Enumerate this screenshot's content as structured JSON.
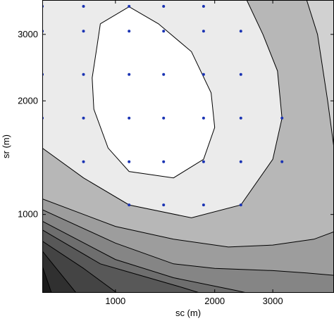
{
  "chart_data": {
    "type": "contour",
    "title": "",
    "xlabel": "sc (m)",
    "ylabel": "sr (m)",
    "x_scale": "log",
    "y_scale": "log",
    "xlim": [
      600,
      4600
    ],
    "ylim": [
      620,
      3700
    ],
    "x_ticks": [
      {
        "value": 1000,
        "label": "1000"
      },
      {
        "value": 2000,
        "label": "2000"
      },
      {
        "value": 3000,
        "label": "3000"
      }
    ],
    "y_ticks": [
      {
        "value": 1000,
        "label": "1000"
      },
      {
        "value": 2000,
        "label": "2000"
      },
      {
        "value": 3000,
        "label": "3000"
      }
    ],
    "grid": false,
    "legend": "none",
    "colors": {
      "marker": "#1a33b3",
      "contour_line": "#000000",
      "fills": [
        "#1a1a1a",
        "#303030",
        "#444444",
        "#585858",
        "#6e6e6e",
        "#858585",
        "#9d9d9d",
        "#b7b7b7",
        "#d1d1d1",
        "#ebebeb",
        "#ffffff"
      ]
    },
    "contours": [
      {
        "level": 1,
        "points": [
          [
            600,
            730
          ],
          [
            640,
            620
          ]
        ]
      },
      {
        "level": 2,
        "points": [
          [
            600,
            800
          ],
          [
            760,
            620
          ]
        ]
      },
      {
        "level": 3,
        "points": [
          [
            600,
            850
          ],
          [
            800,
            720
          ],
          [
            1010,
            620
          ]
        ]
      },
      {
        "level": 4,
        "points": [
          [
            600,
            910
          ],
          [
            900,
            740
          ],
          [
            1600,
            640
          ],
          [
            1800,
            620
          ]
        ]
      },
      {
        "level": 5,
        "points": [
          [
            600,
            960
          ],
          [
            1000,
            760
          ],
          [
            1500,
            680
          ],
          [
            2300,
            630
          ],
          [
            2500,
            620
          ]
        ]
      },
      {
        "level": 6,
        "points": [
          [
            600,
            1030
          ],
          [
            1000,
            840
          ],
          [
            1500,
            740
          ],
          [
            2000,
            720
          ],
          [
            3000,
            710
          ],
          [
            3800,
            700
          ],
          [
            4600,
            690
          ]
        ]
      },
      {
        "level": 7,
        "points": [
          [
            600,
            1100
          ],
          [
            1000,
            930
          ],
          [
            1500,
            860
          ],
          [
            2200,
            820
          ],
          [
            3000,
            830
          ],
          [
            4000,
            860
          ],
          [
            4600,
            900
          ]
        ]
      },
      {
        "level": 8,
        "points": [
          [
            600,
            1500
          ],
          [
            800,
            1250
          ],
          [
            1100,
            1060
          ],
          [
            1700,
            980
          ],
          [
            2400,
            1060
          ],
          [
            3000,
            1400
          ],
          [
            3200,
            1800
          ],
          [
            3100,
            2400
          ],
          [
            2800,
            3000
          ],
          [
            2500,
            3700
          ]
        ]
      },
      {
        "level": 9,
        "points": [
          [
            900,
            3200
          ],
          [
            880,
            2800
          ],
          [
            850,
            2300
          ],
          [
            860,
            1900
          ],
          [
            950,
            1500
          ],
          [
            1100,
            1300
          ],
          [
            1500,
            1250
          ],
          [
            1850,
            1400
          ],
          [
            2000,
            1700
          ],
          [
            1950,
            2100
          ],
          [
            1700,
            2700
          ],
          [
            1350,
            3200
          ],
          [
            1100,
            3550
          ],
          [
            900,
            3200
          ]
        ]
      },
      {
        "level": 10,
        "points": [
          [
            3800,
            3700
          ],
          [
            4100,
            3000
          ],
          [
            4400,
            2000
          ],
          [
            4600,
            1500
          ]
        ]
      }
    ],
    "points": [
      [
        600,
        3560
      ],
      [
        800,
        3560
      ],
      [
        1100,
        3560
      ],
      [
        1400,
        3560
      ],
      [
        1850,
        3560
      ],
      [
        600,
        3060
      ],
      [
        800,
        3060
      ],
      [
        1100,
        3060
      ],
      [
        1400,
        3060
      ],
      [
        1850,
        3060
      ],
      [
        2400,
        3060
      ],
      [
        600,
        2350
      ],
      [
        800,
        2350
      ],
      [
        1100,
        2350
      ],
      [
        1400,
        2350
      ],
      [
        1850,
        2350
      ],
      [
        2400,
        2350
      ],
      [
        600,
        1800
      ],
      [
        800,
        1800
      ],
      [
        1100,
        1800
      ],
      [
        1400,
        1800
      ],
      [
        1850,
        1800
      ],
      [
        2400,
        1800
      ],
      [
        3200,
        1800
      ],
      [
        800,
        1380
      ],
      [
        1100,
        1380
      ],
      [
        1400,
        1380
      ],
      [
        1850,
        1380
      ],
      [
        2400,
        1380
      ],
      [
        3200,
        1380
      ],
      [
        1100,
        1060
      ],
      [
        1400,
        1060
      ],
      [
        1850,
        1060
      ],
      [
        2400,
        1060
      ]
    ]
  }
}
